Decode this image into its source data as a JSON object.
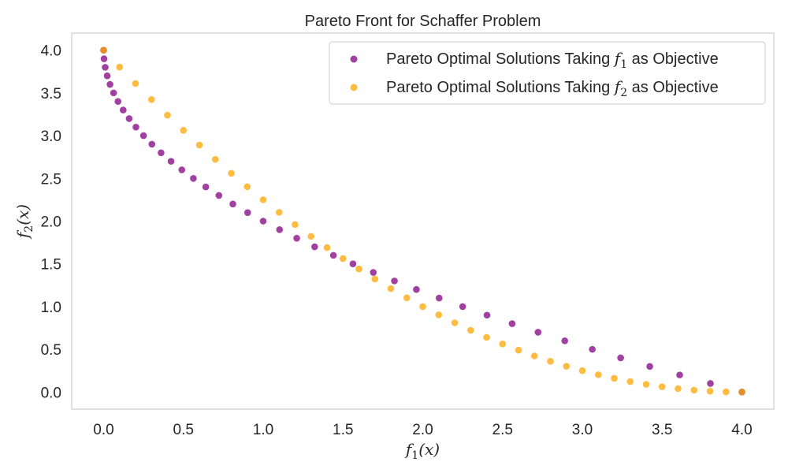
{
  "chart_data": {
    "type": "scatter",
    "title": "Pareto Front for Schaffer Problem",
    "xlabel": {
      "base": "f",
      "sub": "1",
      "rest": "(x)"
    },
    "ylabel": {
      "base": "f",
      "sub": "2",
      "rest": "(x)"
    },
    "xlim": [
      -0.2,
      4.2
    ],
    "ylim": [
      -0.2,
      4.2
    ],
    "xticks": [
      0.0,
      0.5,
      1.0,
      1.5,
      2.0,
      2.5,
      3.0,
      3.5,
      4.0
    ],
    "yticks": [
      0.0,
      0.5,
      1.0,
      1.5,
      2.0,
      2.5,
      3.0,
      3.5,
      4.0
    ],
    "xtick_labels": [
      "0.0",
      "0.5",
      "1.0",
      "1.5",
      "2.0",
      "2.5",
      "3.0",
      "3.5",
      "4.0"
    ],
    "ytick_labels": [
      "0.0",
      "0.5",
      "1.0",
      "1.5",
      "2.0",
      "2.5",
      "3.0",
      "3.5",
      "4.0"
    ],
    "grid": false,
    "legend_position": "top-right",
    "series": [
      {
        "name": "Pareto Optimal Solutions Taking f1 as Objective",
        "legend": {
          "prefix": "Pareto Optimal Solutions Taking ",
          "math": "f",
          "sub": "1",
          "suffix": " as Objective"
        },
        "color": "#800080",
        "opacity": 0.75,
        "points": [
          [
            0.0,
            4.0
          ],
          [
            0.0025,
            3.9
          ],
          [
            0.01,
            3.8
          ],
          [
            0.0225,
            3.7
          ],
          [
            0.04,
            3.6
          ],
          [
            0.0625,
            3.5
          ],
          [
            0.09,
            3.4
          ],
          [
            0.1225,
            3.3
          ],
          [
            0.16,
            3.2
          ],
          [
            0.2025,
            3.1
          ],
          [
            0.25,
            3.0
          ],
          [
            0.3025,
            2.9
          ],
          [
            0.36,
            2.8
          ],
          [
            0.4225,
            2.7
          ],
          [
            0.49,
            2.6
          ],
          [
            0.5625,
            2.5
          ],
          [
            0.64,
            2.4
          ],
          [
            0.7225,
            2.3
          ],
          [
            0.81,
            2.2
          ],
          [
            0.9025,
            2.1
          ],
          [
            1.0,
            2.0
          ],
          [
            1.1025,
            1.9
          ],
          [
            1.21,
            1.8
          ],
          [
            1.3225,
            1.7
          ],
          [
            1.44,
            1.6
          ],
          [
            1.5625,
            1.5
          ],
          [
            1.69,
            1.4
          ],
          [
            1.8225,
            1.3
          ],
          [
            1.96,
            1.2
          ],
          [
            2.1025,
            1.1
          ],
          [
            2.25,
            1.0
          ],
          [
            2.4025,
            0.9
          ],
          [
            2.56,
            0.8
          ],
          [
            2.7225,
            0.7
          ],
          [
            2.89,
            0.6
          ],
          [
            3.0625,
            0.5
          ],
          [
            3.24,
            0.4
          ],
          [
            3.4225,
            0.3
          ],
          [
            3.61,
            0.2
          ],
          [
            3.8025,
            0.1
          ],
          [
            4.0,
            0.0
          ]
        ]
      },
      {
        "name": "Pareto Optimal Solutions Taking f2 as Objective",
        "legend": {
          "prefix": "Pareto Optimal Solutions Taking ",
          "math": "f",
          "sub": "2",
          "suffix": " as Objective"
        },
        "color": "#FFA500",
        "opacity": 0.75,
        "points": [
          [
            4.0,
            0.0
          ],
          [
            3.9,
            0.0025
          ],
          [
            3.8,
            0.01
          ],
          [
            3.7,
            0.0225
          ],
          [
            3.6,
            0.04
          ],
          [
            3.5,
            0.0625
          ],
          [
            3.4,
            0.09
          ],
          [
            3.3,
            0.1225
          ],
          [
            3.2,
            0.16
          ],
          [
            3.1,
            0.2025
          ],
          [
            3.0,
            0.25
          ],
          [
            2.9,
            0.3025
          ],
          [
            2.8,
            0.36
          ],
          [
            2.7,
            0.4225
          ],
          [
            2.6,
            0.49
          ],
          [
            2.5,
            0.5625
          ],
          [
            2.4,
            0.64
          ],
          [
            2.3,
            0.7225
          ],
          [
            2.2,
            0.81
          ],
          [
            2.1,
            0.9025
          ],
          [
            2.0,
            1.0
          ],
          [
            1.9,
            1.1025
          ],
          [
            1.8,
            1.21
          ],
          [
            1.7,
            1.3225
          ],
          [
            1.6,
            1.44
          ],
          [
            1.5,
            1.5625
          ],
          [
            1.4,
            1.69
          ],
          [
            1.3,
            1.8225
          ],
          [
            1.2,
            1.96
          ],
          [
            1.1,
            2.1025
          ],
          [
            1.0,
            2.25
          ],
          [
            0.9,
            2.4025
          ],
          [
            0.8,
            2.56
          ],
          [
            0.7,
            2.7225
          ],
          [
            0.6,
            2.89
          ],
          [
            0.5,
            3.0625
          ],
          [
            0.4,
            3.24
          ],
          [
            0.3,
            3.4225
          ],
          [
            0.2,
            3.61
          ],
          [
            0.1,
            3.8025
          ],
          [
            0.0,
            4.0
          ]
        ]
      }
    ]
  }
}
